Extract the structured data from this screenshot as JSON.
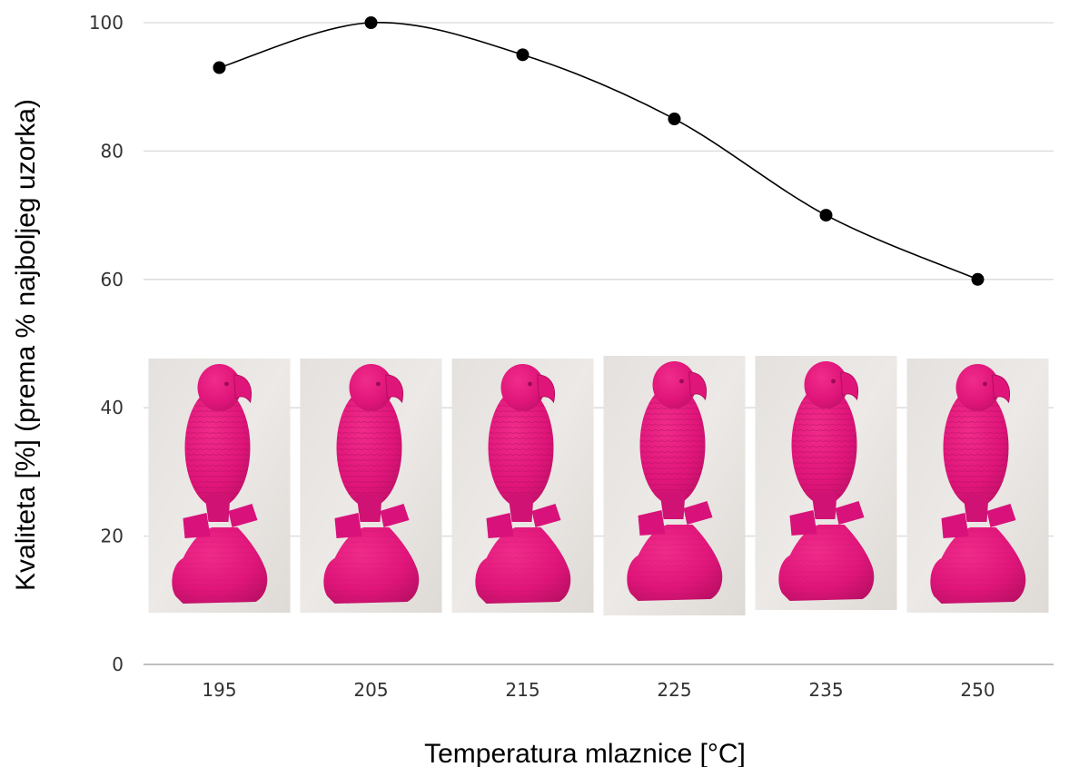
{
  "chart_data": {
    "type": "line",
    "xlabel": "Temperatura mlaznice [°C]",
    "ylabel": "Kvaliteta [%] (prema % najboljeg uzorka)",
    "categories": [
      "195",
      "205",
      "215",
      "225",
      "235",
      "250"
    ],
    "series": [
      {
        "values": [
          93,
          100,
          95,
          85,
          70,
          60
        ]
      }
    ],
    "ylim": [
      0,
      100
    ],
    "yticks": [
      "0",
      "20",
      "40",
      "60",
      "80",
      "100"
    ],
    "grid": true,
    "line_style": "smooth",
    "marker": "filled-circle",
    "colors": {
      "line": "#000000",
      "grid": "#d9d9d9",
      "figurine": "#e8157a",
      "photo_background": "#e9e6e3"
    },
    "images": [
      {
        "category": "195",
        "subject": "pink 3D-printed parrot figurine"
      },
      {
        "category": "205",
        "subject": "pink 3D-printed parrot figurine"
      },
      {
        "category": "215",
        "subject": "pink 3D-printed parrot figurine"
      },
      {
        "category": "225",
        "subject": "pink 3D-printed parrot figurine"
      },
      {
        "category": "235",
        "subject": "pink 3D-printed parrot figurine"
      },
      {
        "category": "250",
        "subject": "pink 3D-printed parrot figurine"
      }
    ]
  }
}
